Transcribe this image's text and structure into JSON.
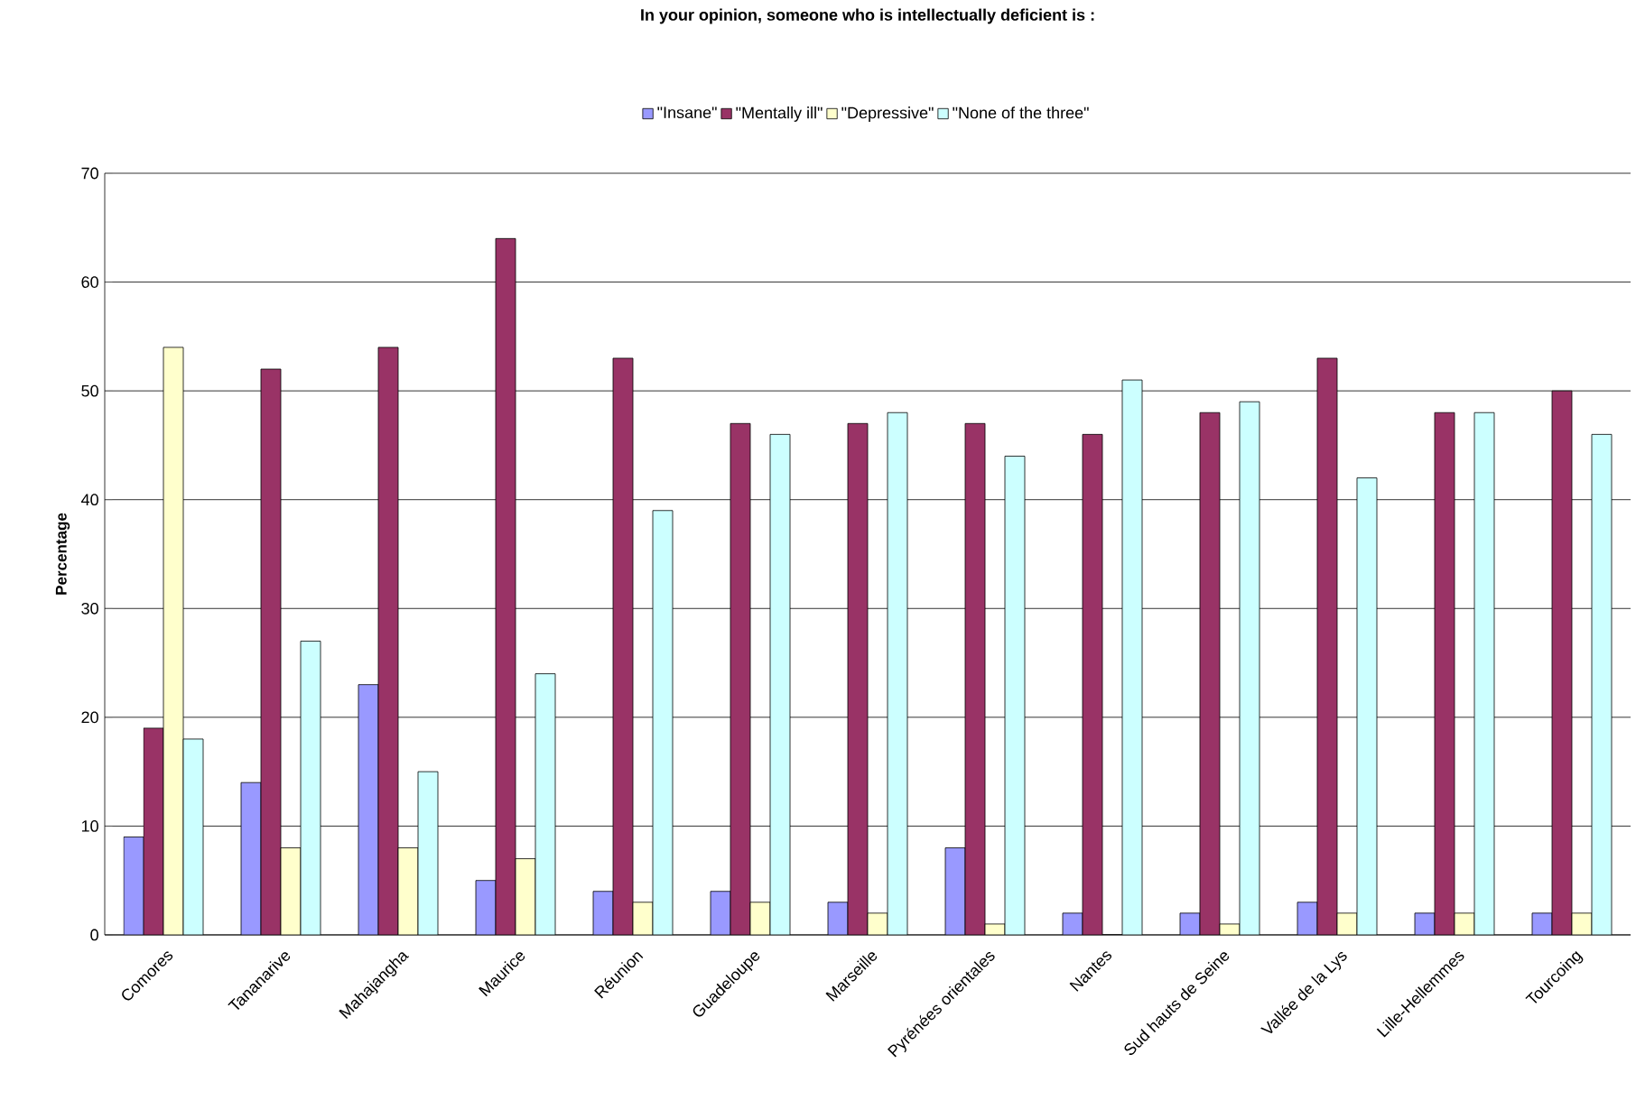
{
  "chart_data": {
    "type": "bar",
    "title": "In your opinion, someone who is intellectually deficient is :",
    "ylabel": "Percentage",
    "categories": [
      "Comores",
      "Tananarive",
      "Mahajangha",
      "Maurice",
      "Réunion",
      "Guadeloupe",
      "Marseille",
      "Pyrénées orientales",
      "Nantes",
      "Sud hauts de Seine",
      "Vallée de la Lys",
      "Lille-Hellemmes",
      "Tourcoing"
    ],
    "series": [
      {
        "name": "\"Insane\"",
        "color": "#9999ff",
        "values": [
          9,
          14,
          23,
          5,
          4,
          4,
          3,
          8,
          2,
          2,
          3,
          2,
          2
        ]
      },
      {
        "name": "\"Mentally ill\"",
        "color": "#993366",
        "values": [
          19,
          52,
          54,
          64,
          53,
          47,
          47,
          47,
          46,
          48,
          53,
          48,
          50
        ]
      },
      {
        "name": "\"Depressive\"",
        "color": "#ffffcc",
        "values": [
          54,
          8,
          8,
          7,
          3,
          3,
          2,
          1,
          0,
          1,
          2,
          2,
          2
        ]
      },
      {
        "name": "\"None of the three\"",
        "color": "#ccffff",
        "values": [
          18,
          27,
          15,
          24,
          39,
          46,
          48,
          44,
          51,
          49,
          42,
          48,
          46
        ]
      }
    ],
    "ylim": [
      0,
      70
    ],
    "yticks": [
      0,
      10,
      20,
      30,
      40,
      50,
      60,
      70
    ],
    "grid": "y",
    "legend": "top"
  }
}
